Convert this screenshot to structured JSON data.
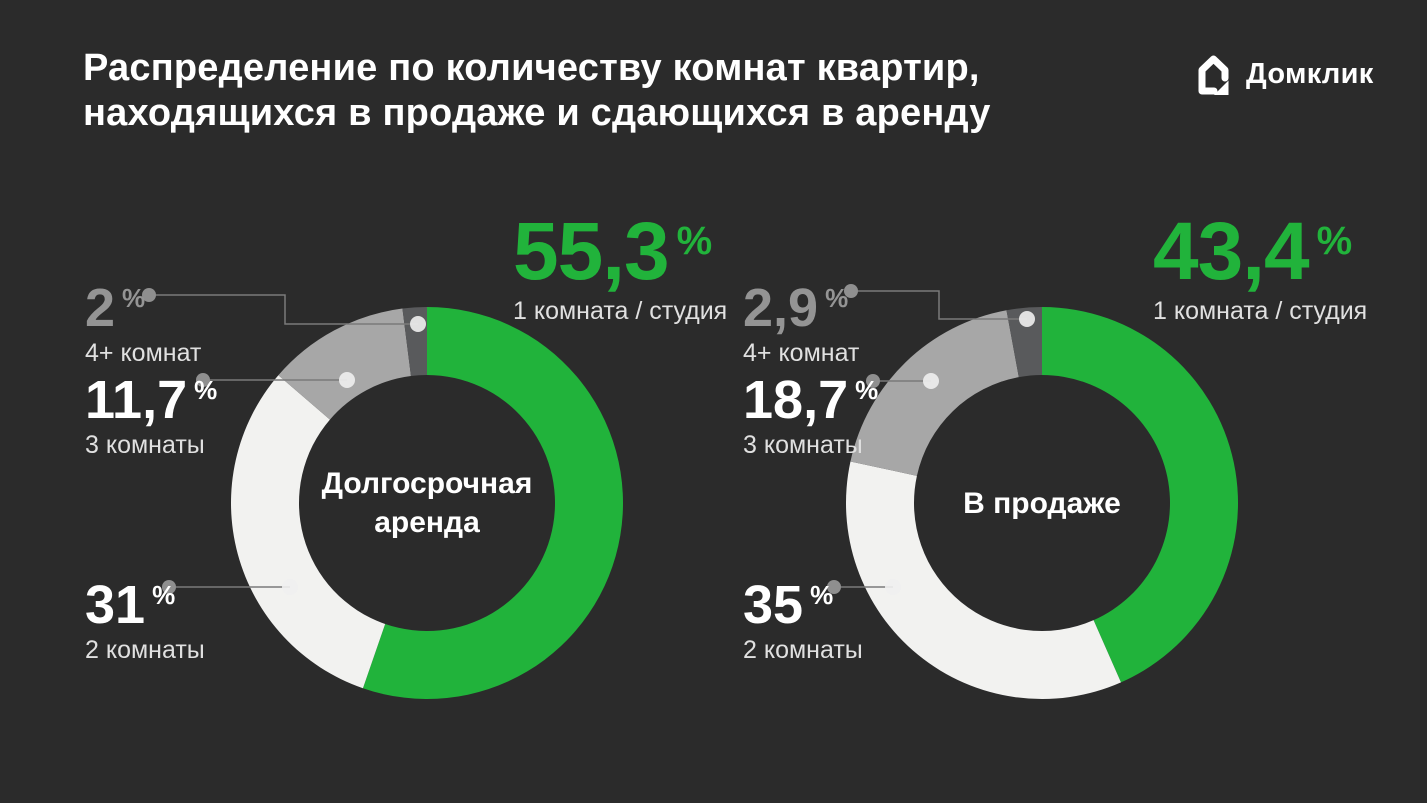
{
  "title": {
    "line1": "Распределение по количеству комнат квартир,",
    "line2": "находящихся в продаже и сдающихся в аренду"
  },
  "logo": {
    "brand": "Домклик",
    "icon": "domclick-house-icon"
  },
  "percent_sign": "%",
  "colors": {
    "background": "#2B2B2B",
    "green": "#21B33B",
    "white_segment": "#F2F2F0",
    "gray_segment": "#A7A7A7",
    "darkgray_segment": "#595A5C",
    "text_white": "#FFFFFF",
    "text_gray": "#949494",
    "sublabel": "#E0E0E0",
    "callout_line": "#7A7A7A",
    "callout_dot_label": "#8F8F8F",
    "callout_dot_segment": "#EFEFEF"
  },
  "chart_data": [
    {
      "type": "donut",
      "center_label": "Долгосрочная аренда",
      "center_lines": [
        "Долгосрочная",
        "аренда"
      ],
      "start_angle_deg": 0,
      "direction": "clockwise",
      "segments": [
        {
          "name": "1 комната / студия",
          "value": 55.3,
          "display": "55,3",
          "color": "green"
        },
        {
          "name": "2 комнаты",
          "value": 31,
          "display": "31",
          "color": "white_segment"
        },
        {
          "name": "3 комнаты",
          "value": 11.7,
          "display": "11,7",
          "color": "gray_segment"
        },
        {
          "name": "4+ комнат",
          "value": 2,
          "display": "2",
          "color": "darkgray_segment"
        }
      ]
    },
    {
      "type": "donut",
      "center_label": "В продаже",
      "center_lines": [
        "В продаже"
      ],
      "start_angle_deg": 0,
      "direction": "clockwise",
      "segments": [
        {
          "name": "1 комната / студия",
          "value": 43.4,
          "display": "43,4",
          "color": "green"
        },
        {
          "name": "2 комнаты",
          "value": 35,
          "display": "35",
          "color": "white_segment"
        },
        {
          "name": "3 комнаты",
          "value": 18.7,
          "display": "18,7",
          "color": "gray_segment"
        },
        {
          "name": "4+ комнат",
          "value": 2.9,
          "display": "2,9",
          "color": "darkgray_segment"
        }
      ]
    }
  ]
}
